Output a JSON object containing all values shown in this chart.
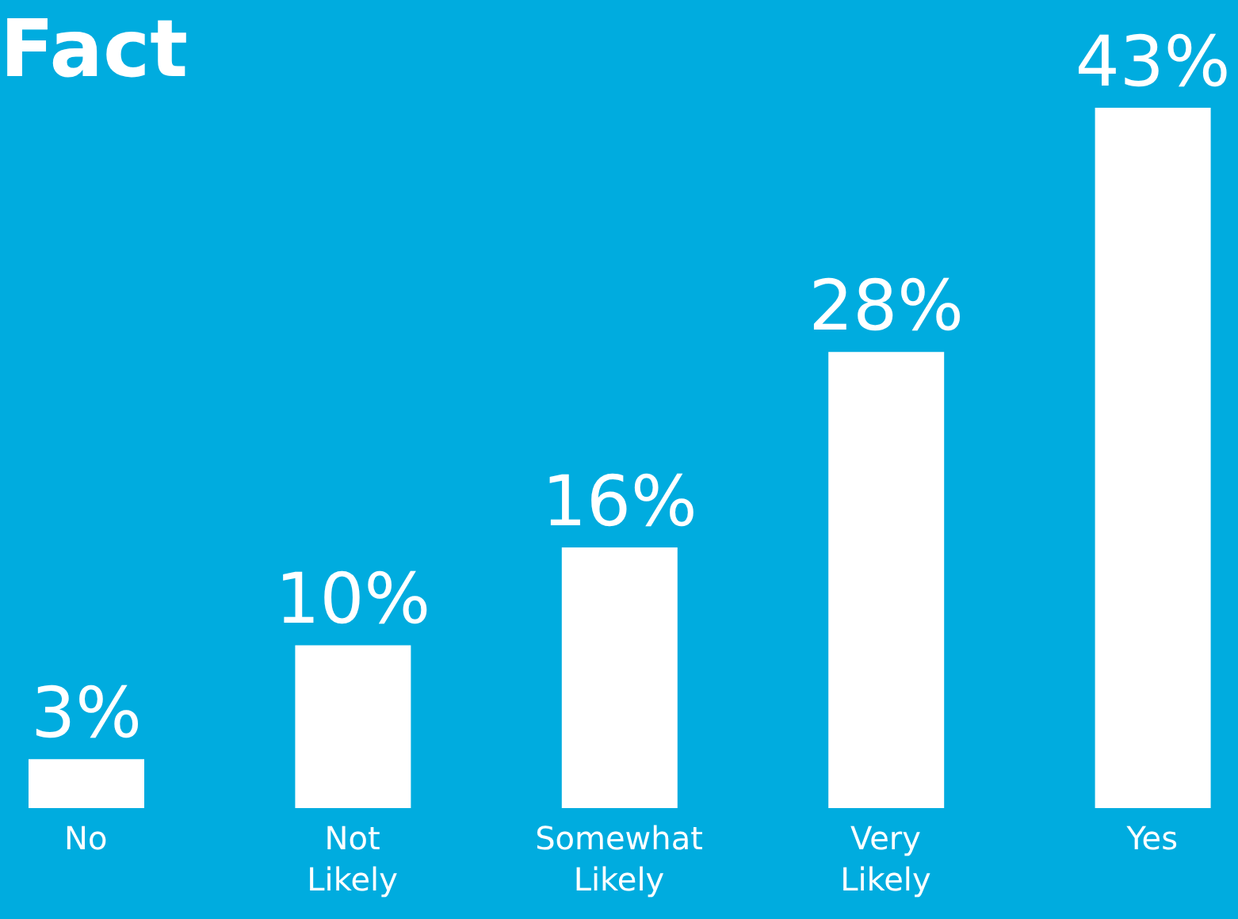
{
  "chart_data": {
    "type": "bar",
    "title": "Fact",
    "categories": [
      "No",
      "Not Likely",
      "Somewhat Likely",
      "Very Likely",
      "Yes"
    ],
    "values": [
      3,
      10,
      16,
      28,
      43
    ],
    "value_labels": [
      "3%",
      "10%",
      "16%",
      "28%",
      "43%"
    ],
    "color": "#ffffff"
  }
}
